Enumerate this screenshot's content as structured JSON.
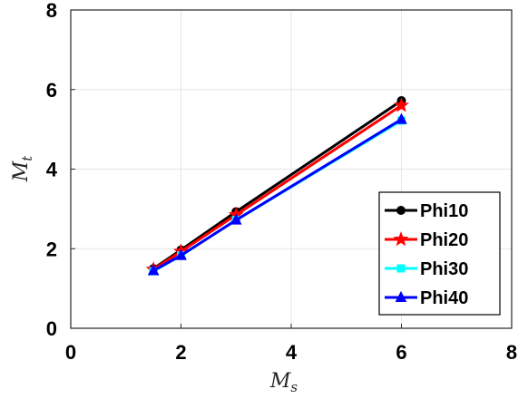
{
  "chart_data": {
    "type": "line",
    "xlabel": {
      "main": "M",
      "sub": "s"
    },
    "ylabel": {
      "main": "M",
      "sub": "t"
    },
    "xlim": [
      0,
      8
    ],
    "ylim": [
      0,
      8
    ],
    "xticks": [
      "0",
      "2",
      "4",
      "6",
      "8"
    ],
    "yticks": [
      "0",
      "2",
      "4",
      "6",
      "8"
    ],
    "grid": true,
    "legend_position": "bottom-right",
    "x": [
      1.5,
      2,
      3,
      6
    ],
    "series": [
      {
        "name": "Phi10",
        "values": [
          1.5,
          1.97,
          2.93,
          5.72
        ],
        "color": "#000000",
        "marker": "circle"
      },
      {
        "name": "Phi20",
        "values": [
          1.48,
          1.93,
          2.85,
          5.6
        ],
        "color": "#ff0000",
        "marker": "star"
      },
      {
        "name": "Phi30",
        "values": [
          1.43,
          1.83,
          2.72,
          5.22
        ],
        "color": "#00ffff",
        "marker": "square"
      },
      {
        "name": "Phi40",
        "values": [
          1.45,
          1.83,
          2.72,
          5.25
        ],
        "color": "#0000ff",
        "marker": "triangle"
      }
    ]
  }
}
